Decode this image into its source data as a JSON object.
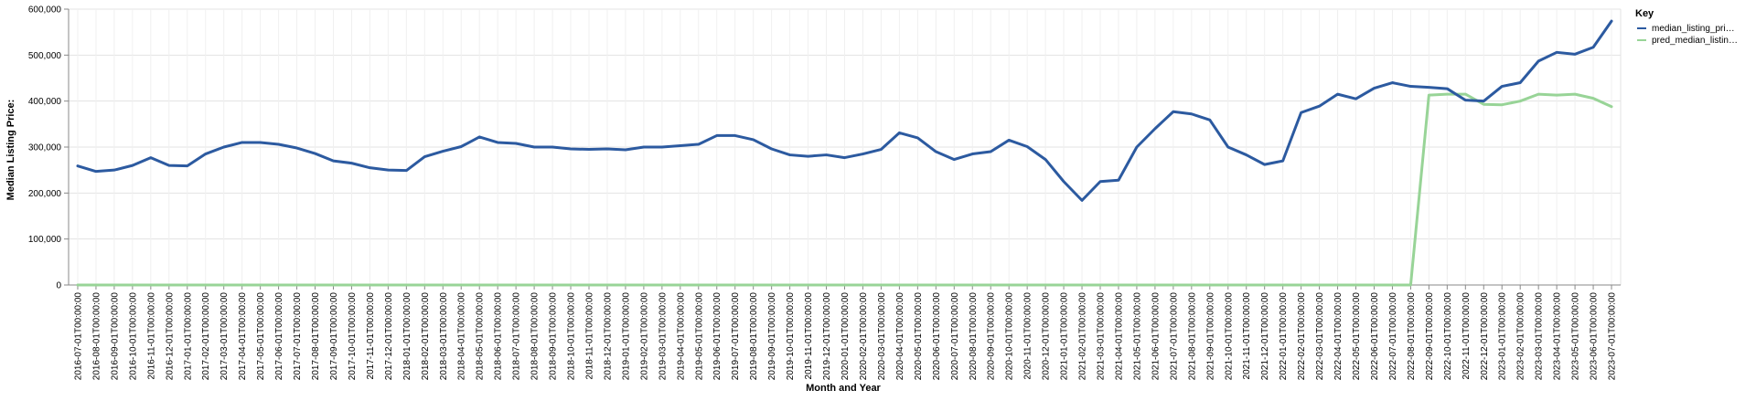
{
  "chart_data": {
    "type": "line",
    "title": "",
    "xlabel": "Month and Year",
    "ylabel": "Median Listing Price:",
    "ylim": [
      0,
      600000
    ],
    "y_ticks": [
      "0",
      "100,000",
      "200,000",
      "300,000",
      "400,000",
      "500,000",
      "600,000"
    ],
    "y_tick_values": [
      0,
      100000,
      200000,
      300000,
      400000,
      500000,
      600000
    ],
    "grid": true,
    "legend_title": "Key",
    "legend_position": "top-right",
    "legend_labels": [
      "median_listing_pri…",
      "pred_median_listin…"
    ],
    "x": [
      "2016-07-01T00:00:00",
      "2016-08-01T00:00:00",
      "2016-09-01T00:00:00",
      "2016-10-01T00:00:00",
      "2016-11-01T00:00:00",
      "2016-12-01T00:00:00",
      "2017-01-01T00:00:00",
      "2017-02-01T00:00:00",
      "2017-03-01T00:00:00",
      "2017-04-01T00:00:00",
      "2017-05-01T00:00:00",
      "2017-06-01T00:00:00",
      "2017-07-01T00:00:00",
      "2017-08-01T00:00:00",
      "2017-09-01T00:00:00",
      "2017-10-01T00:00:00",
      "2017-11-01T00:00:00",
      "2017-12-01T00:00:00",
      "2018-01-01T00:00:00",
      "2018-02-01T00:00:00",
      "2018-03-01T00:00:00",
      "2018-04-01T00:00:00",
      "2018-05-01T00:00:00",
      "2018-06-01T00:00:00",
      "2018-07-01T00:00:00",
      "2018-08-01T00:00:00",
      "2018-09-01T00:00:00",
      "2018-10-01T00:00:00",
      "2018-11-01T00:00:00",
      "2018-12-01T00:00:00",
      "2019-01-01T00:00:00",
      "2019-02-01T00:00:00",
      "2019-03-01T00:00:00",
      "2019-04-01T00:00:00",
      "2019-05-01T00:00:00",
      "2019-06-01T00:00:00",
      "2019-07-01T00:00:00",
      "2019-08-01T00:00:00",
      "2019-09-01T00:00:00",
      "2019-10-01T00:00:00",
      "2019-11-01T00:00:00",
      "2019-12-01T00:00:00",
      "2020-01-01T00:00:00",
      "2020-02-01T00:00:00",
      "2020-03-01T00:00:00",
      "2020-04-01T00:00:00",
      "2020-05-01T00:00:00",
      "2020-06-01T00:00:00",
      "2020-07-01T00:00:00",
      "2020-08-01T00:00:00",
      "2020-09-01T00:00:00",
      "2020-10-01T00:00:00",
      "2020-11-01T00:00:00",
      "2020-12-01T00:00:00",
      "2021-01-01T00:00:00",
      "2021-02-01T00:00:00",
      "2021-03-01T00:00:00",
      "2021-04-01T00:00:00",
      "2021-05-01T00:00:00",
      "2021-06-01T00:00:00",
      "2021-07-01T00:00:00",
      "2021-08-01T00:00:00",
      "2021-09-01T00:00:00",
      "2021-10-01T00:00:00",
      "2021-11-01T00:00:00",
      "2021-12-01T00:00:00",
      "2022-01-01T00:00:00",
      "2022-02-01T00:00:00",
      "2022-03-01T00:00:00",
      "2022-04-01T00:00:00",
      "2022-05-01T00:00:00",
      "2022-06-01T00:00:00",
      "2022-07-01T00:00:00",
      "2022-08-01T00:00:00",
      "2022-09-01T00:00:00",
      "2022-10-01T00:00:00",
      "2022-11-01T00:00:00",
      "2022-12-01T00:00:00",
      "2023-01-01T00:00:00",
      "2023-02-01T00:00:00",
      "2023-03-01T00:00:00",
      "2023-04-01T00:00:00",
      "2023-05-01T00:00:00",
      "2023-06-01T00:00:00",
      "2023-07-01T00:00:00"
    ],
    "series": [
      {
        "color": "#2c5aa0",
        "values": [
          259000,
          247000,
          250000,
          260000,
          277000,
          260000,
          259000,
          285000,
          300000,
          310000,
          310000,
          306000,
          298000,
          286000,
          270000,
          265000,
          255000,
          250000,
          249000,
          279000,
          291000,
          301000,
          322000,
          310000,
          308000,
          300000,
          300000,
          296000,
          295000,
          296000,
          294000,
          300000,
          300000,
          303000,
          306000,
          325000,
          325000,
          316000,
          296000,
          283000,
          280000,
          283000,
          277000,
          285000,
          295000,
          331000,
          320000,
          290000,
          273000,
          285000,
          290000,
          315000,
          301000,
          273000,
          225000,
          184000,
          225000,
          228000,
          300000,
          340000,
          377000,
          372000,
          359000,
          300000,
          283000,
          262000,
          270000,
          375000,
          389000,
          415000,
          405000,
          428000,
          440000,
          432000,
          430000,
          427000,
          402000,
          400000,
          432000,
          440000,
          487000,
          506000,
          502000,
          517000,
          574000
        ]
      },
      {
        "color": "#98d497",
        "values": [
          0,
          0,
          0,
          0,
          0,
          0,
          0,
          0,
          0,
          0,
          0,
          0,
          0,
          0,
          0,
          0,
          0,
          0,
          0,
          0,
          0,
          0,
          0,
          0,
          0,
          0,
          0,
          0,
          0,
          0,
          0,
          0,
          0,
          0,
          0,
          0,
          0,
          0,
          0,
          0,
          0,
          0,
          0,
          0,
          0,
          0,
          0,
          0,
          0,
          0,
          0,
          0,
          0,
          0,
          0,
          0,
          0,
          0,
          0,
          0,
          0,
          0,
          0,
          0,
          0,
          0,
          0,
          0,
          0,
          0,
          0,
          0,
          0,
          0,
          413000,
          415000,
          415000,
          393000,
          392000,
          400000,
          415000,
          413000,
          415000,
          406000,
          388000
        ]
      }
    ]
  }
}
